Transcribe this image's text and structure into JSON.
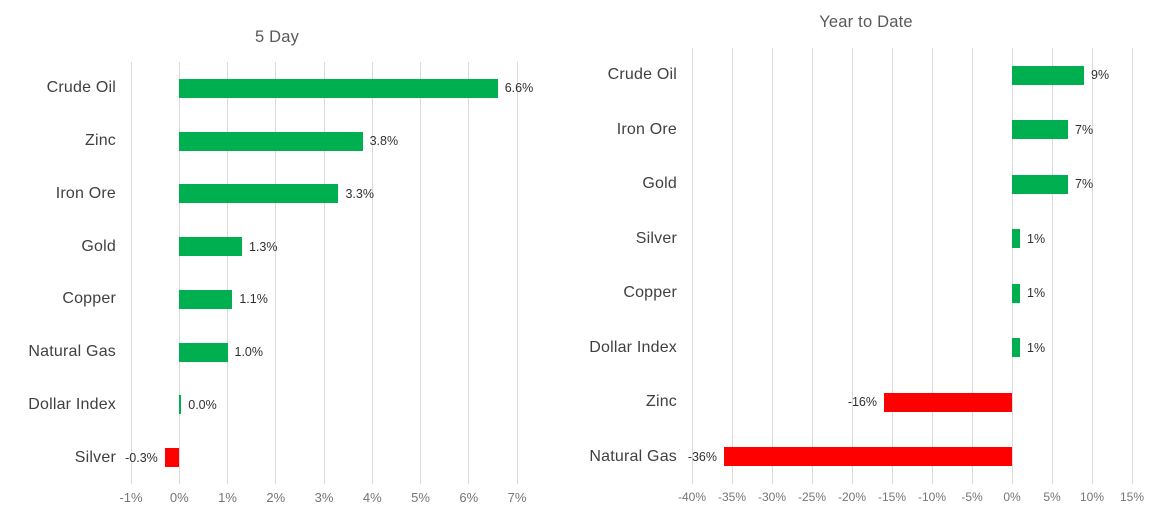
{
  "page": {
    "background": "#FFFFFF"
  },
  "colors": {
    "positive_bar": "#00B050",
    "negative_bar": "#FF0000",
    "gridline": "#D9D9D9",
    "title_text": "#595959",
    "category_text": "#404040",
    "value_text": "#303030",
    "tick_text": "#757575"
  },
  "chart_data": [
    {
      "type": "bar",
      "orientation": "horizontal",
      "title": "5 Day",
      "categories": [
        "Crude Oil",
        "Zinc",
        "Iron Ore",
        "Gold",
        "Copper",
        "Natural Gas",
        "Dollar Index",
        "Silver"
      ],
      "values": [
        6.6,
        3.8,
        3.3,
        1.3,
        1.1,
        1.0,
        0.0,
        -0.3
      ],
      "value_labels": [
        "6.6%",
        "3.8%",
        "3.3%",
        "1.3%",
        "1.1%",
        "1.0%",
        "0.0%",
        "-0.3%"
      ],
      "xlim": [
        -1,
        7
      ],
      "ticks": [
        -1,
        0,
        1,
        2,
        3,
        4,
        5,
        6,
        7
      ],
      "tick_labels": [
        "-1%",
        "0%",
        "1%",
        "2%",
        "3%",
        "4%",
        "5%",
        "6%",
        "7%"
      ],
      "grid": true,
      "legend": "none",
      "positive_color": "#00B050",
      "negative_color": "#FF0000"
    },
    {
      "type": "bar",
      "orientation": "horizontal",
      "title": "Year to Date",
      "categories": [
        "Crude Oil",
        "Iron Ore",
        "Gold",
        "Silver",
        "Copper",
        "Dollar Index",
        "Zinc",
        "Natural Gas"
      ],
      "values": [
        9,
        7,
        7,
        1,
        1,
        1,
        -16,
        -36
      ],
      "value_labels": [
        "9%",
        "7%",
        "7%",
        "1%",
        "1%",
        "1%",
        "-16%",
        "-36%"
      ],
      "xlim": [
        -40,
        15
      ],
      "ticks": [
        -40,
        -35,
        -30,
        -25,
        -20,
        -15,
        -10,
        -5,
        0,
        5,
        10,
        15
      ],
      "tick_labels": [
        "-40%",
        "-35%",
        "-30%",
        "-25%",
        "-20%",
        "-15%",
        "-10%",
        "-5%",
        "0%",
        "5%",
        "10%",
        "15%"
      ],
      "grid": true,
      "legend": "none",
      "positive_color": "#00B050",
      "negative_color": "#FF0000"
    }
  ]
}
